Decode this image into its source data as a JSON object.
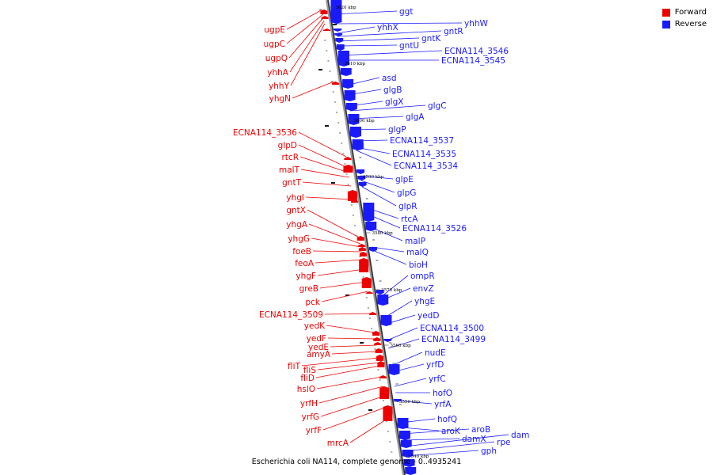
{
  "legend": [
    {
      "label": "Forward",
      "color": "#ee0000"
    },
    {
      "label": "Reverse",
      "color": "#1a1aff"
    }
  ],
  "caption": "Escherichia coli NA114, complete genome  -  0..4935241",
  "ticks": [
    "3620 kbp",
    "3610 kbp",
    "3600 kbp",
    "3590 kbp",
    "3580 kbp",
    "3570 kbp",
    "3560 kbp",
    "3550 kbp",
    "3540 kbp"
  ],
  "genes_forward": [
    "ugpE",
    "ugpC",
    "ugpQ",
    "yhhA",
    "yhhY",
    "yhgN",
    "ECNA114_3536",
    "glpD",
    "rtcR",
    "malT",
    "gntT",
    "yhgI",
    "gntX",
    "yhgA",
    "yhgG",
    "foeB",
    "feoA",
    "yhgF",
    "greB",
    "pck",
    "ECNA114_3509",
    "yedK",
    "yedF",
    "yedE",
    "amyA",
    "fliT",
    "fliS",
    "fliD",
    "hslO",
    "yrfH",
    "yrfG",
    "yrfF",
    "mrcA"
  ],
  "genes_reverse": [
    "ggt",
    "yhhX",
    "yhhW",
    "gntR",
    "gntK",
    "gntU",
    "ECNA114_3546",
    "ECNA114_3545",
    "asd",
    "glgB",
    "glgX",
    "glgC",
    "glgA",
    "glgP",
    "ECNA114_3537",
    "ECNA114_3535",
    "ECNA114_3534",
    "glpE",
    "glpG",
    "glpR",
    "rtcA",
    "ECNA114_3526",
    "malP",
    "malQ",
    "bioH",
    "ompR",
    "envZ",
    "yhgE",
    "yedD",
    "ECNA114_3500",
    "ECNA114_3499",
    "nudE",
    "yrfD",
    "yrfC",
    "hofO",
    "yrfA",
    "hofQ",
    "aroK",
    "aroB",
    "damX",
    "dam",
    "rpe",
    "gph"
  ]
}
